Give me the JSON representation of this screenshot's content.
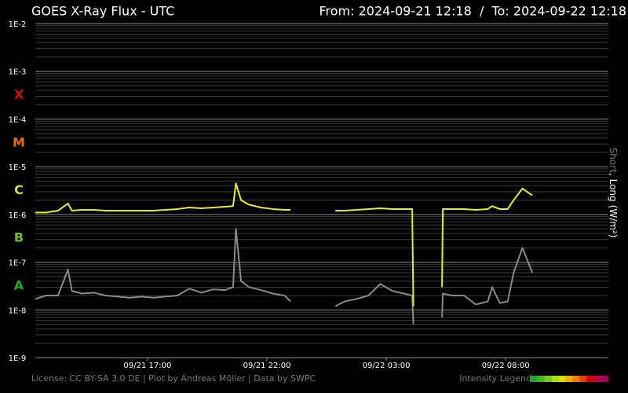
{
  "chart_data": {
    "type": "line",
    "title": "GOES X-Ray Flux - UTC",
    "subtitle": "From: 2024-09-21 12:18  /  To: 2024-09-22 12:18",
    "footer": "License: CC BY-SA 3.0 DE | Plot by Andreas Möller | Data by SWPC",
    "legend_separator": ",",
    "unit": "(W/m²)",
    "log_scale": true,
    "grid": true,
    "minor_grid": true,
    "ylim": [
      1e-09,
      0.01
    ],
    "yticks": [
      {
        "value": 1e-09,
        "label": "1E-9"
      },
      {
        "value": 1e-08,
        "label": "1E-8"
      },
      {
        "value": 1e-07,
        "label": "1E-7"
      },
      {
        "value": 1e-06,
        "label": "1E-6"
      },
      {
        "value": 1e-05,
        "label": "1E-5"
      },
      {
        "value": 0.0001,
        "label": "1E-4"
      },
      {
        "value": 0.001,
        "label": "1E-3"
      },
      {
        "value": 0.01,
        "label": "1E-2"
      }
    ],
    "xlim": [
      "09/21 12:18",
      "09/22 12:18"
    ],
    "xticks": [
      "09/21 17:00",
      "09/21 22:00",
      "09/22 03:00",
      "09/22 08:00"
    ],
    "classes": [
      {
        "label": "X",
        "range": [
          0.0001,
          0.001
        ],
        "color": "#cc1010"
      },
      {
        "label": "M",
        "range": [
          1e-05,
          0.0001
        ],
        "color": "#e86a10"
      },
      {
        "label": "C",
        "range": [
          1e-06,
          1e-05
        ],
        "color": "#d8e020"
      },
      {
        "label": "B",
        "range": [
          1e-07,
          1e-06
        ],
        "color": "#7ac020"
      },
      {
        "label": "A",
        "range": [
          1e-08,
          1e-07
        ],
        "color": "#20b020"
      }
    ],
    "intensity_legend": {
      "label": "Intensity Legend",
      "colors": [
        "#22aa22",
        "#44bb22",
        "#77cc22",
        "#aadd22",
        "#dddd00",
        "#f0b000",
        "#f08000",
        "#e04000",
        "#d00000",
        "#c0003a",
        "#a00060"
      ]
    },
    "x": [
      "09/21 12:18",
      "09/21 12:45",
      "09/21 13:15",
      "09/21 13:40",
      "09/21 13:50",
      "09/21 14:15",
      "09/21 14:45",
      "09/21 15:15",
      "09/21 15:45",
      "09/21 16:15",
      "09/21 16:45",
      "09/21 17:15",
      "09/21 17:45",
      "09/21 18:15",
      "09/21 18:45",
      "09/21 19:15",
      "09/21 19:45",
      "09/21 20:15",
      "09/21 20:35",
      "09/21 20:42",
      "09/21 20:55",
      "09/21 21:15",
      "09/21 21:45",
      "09/21 22:15",
      "09/21 22:45",
      "09/21 22:59",
      "09/21 23:30",
      "09/22 00:15",
      "09/22 00:52",
      "09/22 01:15",
      "09/22 01:45",
      "09/22 02:15",
      "09/22 02:45",
      "09/22 03:15",
      "09/22 03:45",
      "09/22 04:05",
      "09/22 04:08",
      "09/22 04:30",
      "09/22 05:00",
      "09/22 05:20",
      "09/22 05:22",
      "09/22 05:45",
      "09/22 06:15",
      "09/22 06:45",
      "09/22 07:15",
      "09/22 07:26",
      "09/22 07:45",
      "09/22 08:05",
      "09/22 08:20",
      "09/22 08:42",
      "09/22 09:07"
    ],
    "series": [
      {
        "name": "Short",
        "color": "#8a8a8a",
        "values": [
          1.7e-08,
          2e-08,
          2e-08,
          7e-08,
          2.5e-08,
          2.2e-08,
          2.3e-08,
          2e-08,
          1.9e-08,
          1.8e-08,
          1.9e-08,
          1.8e-08,
          1.9e-08,
          2e-08,
          2.8e-08,
          2.3e-08,
          2.7e-08,
          2.6e-08,
          3e-08,
          5e-07,
          4e-08,
          3e-08,
          2.6e-08,
          2.2e-08,
          2e-08,
          1.5e-08,
          null,
          null,
          1.2e-08,
          1.5e-08,
          1.7e-08,
          2e-08,
          3.5e-08,
          2.5e-08,
          2.2e-08,
          2e-08,
          5e-09,
          null,
          null,
          7e-09,
          2.2e-08,
          2e-08,
          2e-08,
          1.3e-08,
          1.5e-08,
          3e-08,
          1.4e-08,
          1.5e-08,
          6e-08,
          2e-07,
          6e-08
        ]
      },
      {
        "name": "Long",
        "color": "#e4f020",
        "values": [
          1.1e-06,
          1.1e-06,
          1.2e-06,
          1.7e-06,
          1.2e-06,
          1.25e-06,
          1.25e-06,
          1.2e-06,
          1.2e-06,
          1.2e-06,
          1.2e-06,
          1.2e-06,
          1.25e-06,
          1.3e-06,
          1.4e-06,
          1.35e-06,
          1.4e-06,
          1.45e-06,
          1.5e-06,
          4.5e-06,
          2e-06,
          1.6e-06,
          1.4e-06,
          1.3e-06,
          1.25e-06,
          1.25e-06,
          null,
          null,
          1.2e-06,
          1.2e-06,
          1.25e-06,
          1.3e-06,
          1.35e-06,
          1.3e-06,
          1.3e-06,
          1.3e-06,
          1.2e-08,
          null,
          null,
          3e-08,
          1.3e-06,
          1.3e-06,
          1.3e-06,
          1.25e-06,
          1.3e-06,
          1.5e-06,
          1.3e-06,
          1.3e-06,
          2e-06,
          3.5e-06,
          2.5e-06
        ]
      }
    ]
  }
}
